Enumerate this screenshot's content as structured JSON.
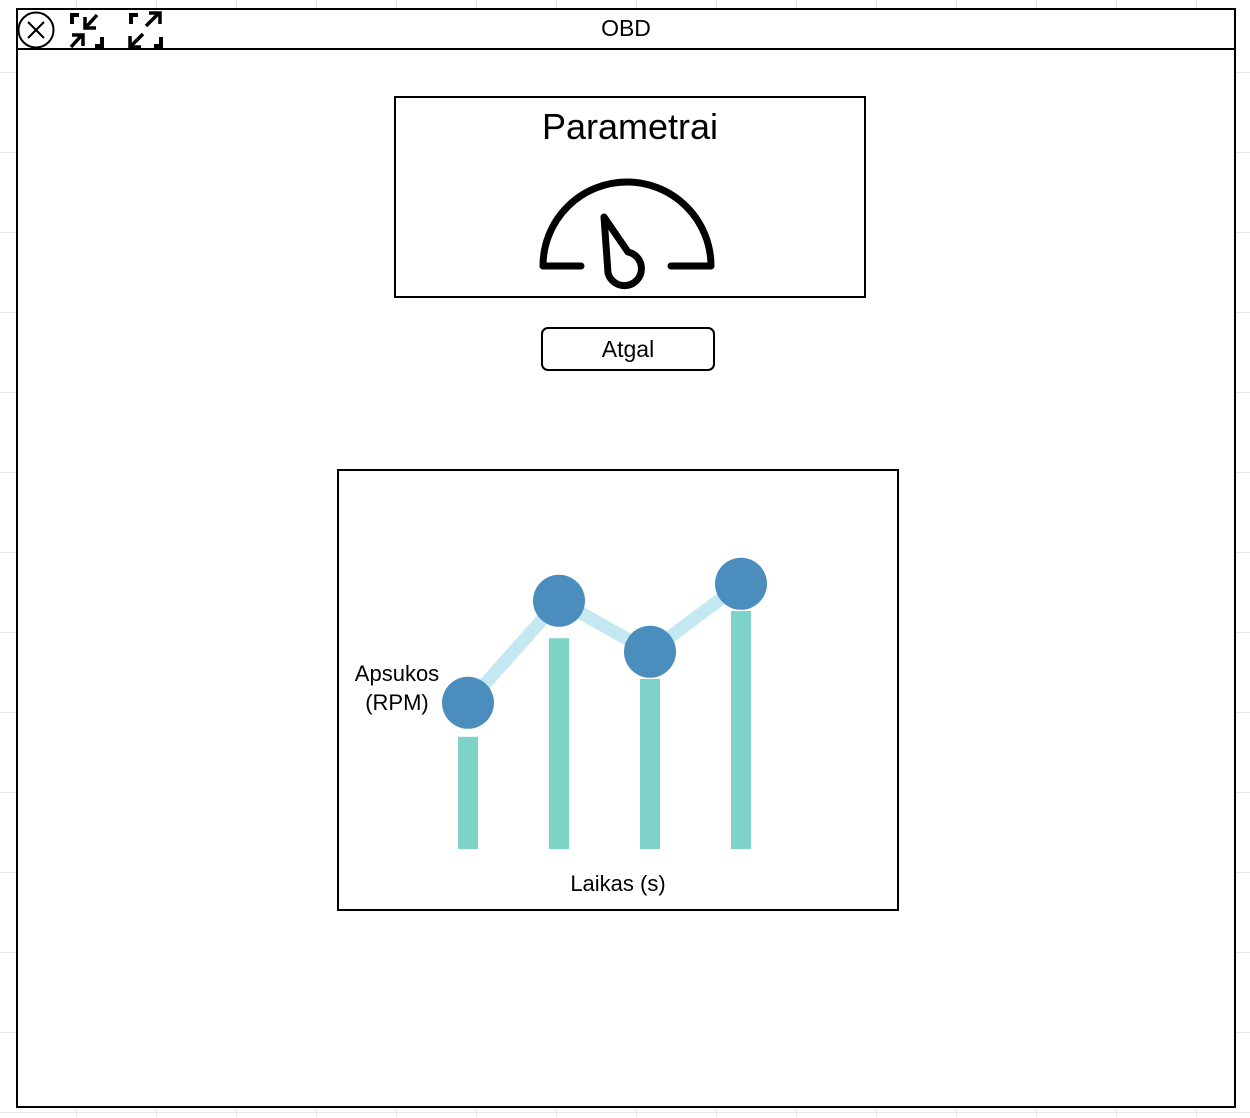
{
  "window": {
    "title": "OBD"
  },
  "titlebar": {
    "icons": [
      "close-icon",
      "shrink-icon",
      "expand-icon"
    ]
  },
  "parameters_card": {
    "title": "Parametrai",
    "icon": "gauge-icon"
  },
  "back_button": {
    "label": "Atgal"
  },
  "chart_data": {
    "type": "bar",
    "title": "",
    "xlabel": "Laikas (s)",
    "ylabel_line1": "Apsukos",
    "ylabel_line2": "(RPM)",
    "categories": [
      "",
      "",
      "",
      ""
    ],
    "series": [
      {
        "values": [
          0.33,
          0.62,
          0.5,
          0.7
        ],
        "style": "bar"
      },
      {
        "values": [
          0.43,
          0.73,
          0.58,
          0.78
        ],
        "style": "line"
      }
    ],
    "ylim": [
      0,
      1
    ],
    "grid": false,
    "colors": {
      "bar": "#7dd3c8",
      "line": "#c4e8f2",
      "point": "#4b8dbd"
    }
  }
}
